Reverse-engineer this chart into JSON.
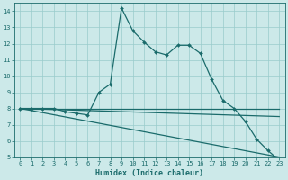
{
  "xlabel": "Humidex (Indice chaleur)",
  "bg_color": "#cce9e9",
  "grid_color": "#99cccc",
  "line_color": "#1a6b6b",
  "xlim": [
    -0.5,
    23.5
  ],
  "ylim": [
    5,
    14.5
  ],
  "xticks": [
    0,
    1,
    2,
    3,
    4,
    5,
    6,
    7,
    8,
    9,
    10,
    11,
    12,
    13,
    14,
    15,
    16,
    17,
    18,
    19,
    20,
    21,
    22,
    23
  ],
  "yticks": [
    5,
    6,
    7,
    8,
    9,
    10,
    11,
    12,
    13,
    14
  ],
  "curve1_x": [
    0,
    1,
    2,
    3,
    4,
    5,
    6,
    7,
    8,
    9,
    10,
    11,
    12,
    13,
    14,
    15,
    16,
    17,
    18,
    19,
    20,
    21,
    22,
    23
  ],
  "curve1_y": [
    8.0,
    8.0,
    8.0,
    8.0,
    7.8,
    7.7,
    7.6,
    9.0,
    9.5,
    14.2,
    12.8,
    12.1,
    11.5,
    11.3,
    11.9,
    11.9,
    11.4,
    9.8,
    8.5,
    8.0,
    7.2,
    6.1,
    5.4,
    4.8
  ],
  "curve2_x": [
    0,
    23
  ],
  "curve2_y": [
    8.0,
    8.0
  ],
  "curve3_x": [
    0,
    23
  ],
  "curve3_y": [
    8.0,
    7.5
  ],
  "curve4_x": [
    0,
    23
  ],
  "curve4_y": [
    8.0,
    5.0
  ],
  "marker_size": 2.0,
  "line_width": 0.9,
  "tick_fontsize": 5.0,
  "xlabel_fontsize": 6.0
}
